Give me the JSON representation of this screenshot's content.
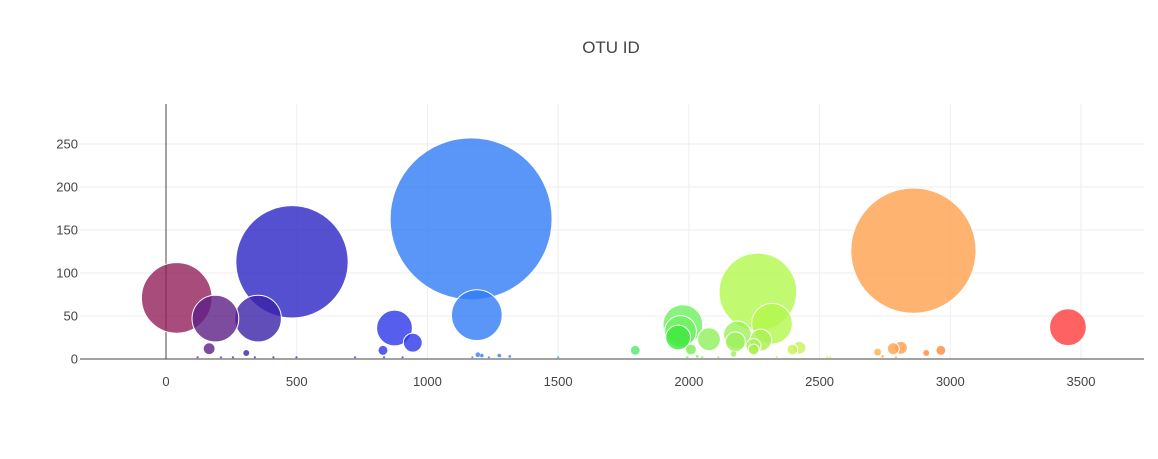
{
  "chart_data": {
    "type": "scatter",
    "subtype": "bubble",
    "title": "OTU ID",
    "xlabel": "",
    "ylabel": "",
    "xlim": [
      -300,
      3740
    ],
    "ylim": [
      -5,
      285
    ],
    "xticks": [
      0,
      500,
      1000,
      1500,
      2000,
      2500,
      3000,
      3500
    ],
    "yticks": [
      0,
      50,
      100,
      150,
      200,
      250
    ],
    "grid": true,
    "legend": "none",
    "size_max_value": 163,
    "points": [
      {
        "x": 1167,
        "y": 163,
        "color": "#2f7cf6"
      },
      {
        "x": 2859,
        "y": 126,
        "color": "#ffa04e"
      },
      {
        "x": 482,
        "y": 113,
        "color": "#2a24c4"
      },
      {
        "x": 2264,
        "y": 78,
        "color": "#b2f84e"
      },
      {
        "x": 41,
        "y": 71,
        "color": "#921f5b"
      },
      {
        "x": 1189,
        "y": 51,
        "color": "#2f7cf6"
      },
      {
        "x": 352,
        "y": 47,
        "color": "#3a22a8"
      },
      {
        "x": 189,
        "y": 47,
        "color": "#5e1f86"
      },
      {
        "x": 2318,
        "y": 41,
        "color": "#b2f84e"
      },
      {
        "x": 1977,
        "y": 40,
        "color": "#6df060"
      },
      {
        "x": 3450,
        "y": 37,
        "color": "#ff3b3b"
      },
      {
        "x": 874,
        "y": 36,
        "color": "#2b36e8"
      },
      {
        "x": 1968,
        "y": 32,
        "color": "#6df060"
      },
      {
        "x": 2186,
        "y": 28,
        "color": "#9df05a"
      },
      {
        "x": 1959,
        "y": 25,
        "color": "#3ee83e"
      },
      {
        "x": 2077,
        "y": 23,
        "color": "#8ff05a"
      },
      {
        "x": 2275,
        "y": 22,
        "color": "#a8f050"
      },
      {
        "x": 2178,
        "y": 20,
        "color": "#9df05a"
      },
      {
        "x": 944,
        "y": 19,
        "color": "#2b36e8"
      },
      {
        "x": 2247,
        "y": 15,
        "color": "#a8f050"
      },
      {
        "x": 2423,
        "y": 13,
        "color": "#c8f05a"
      },
      {
        "x": 2811,
        "y": 13,
        "color": "#ff9c4a"
      },
      {
        "x": 2782,
        "y": 12,
        "color": "#ffa04e"
      },
      {
        "x": 165,
        "y": 12,
        "color": "#5e1f86"
      },
      {
        "x": 2396,
        "y": 11,
        "color": "#c8f05a"
      },
      {
        "x": 2008,
        "y": 11,
        "color": "#78f04e"
      },
      {
        "x": 2248,
        "y": 11,
        "color": "#a8f050"
      },
      {
        "x": 2964,
        "y": 10,
        "color": "#ff8a3a"
      },
      {
        "x": 1795,
        "y": 10,
        "color": "#4ee86e"
      },
      {
        "x": 830,
        "y": 10,
        "color": "#2b36e8"
      },
      {
        "x": 2722,
        "y": 8,
        "color": "#ffb040"
      },
      {
        "x": 2908,
        "y": 7,
        "color": "#ff8a3a"
      },
      {
        "x": 307,
        "y": 7,
        "color": "#3a22a8"
      },
      {
        "x": 2171,
        "y": 6,
        "color": "#9df05a"
      },
      {
        "x": 1193,
        "y": 5,
        "color": "#2f7cf6"
      },
      {
        "x": 1208,
        "y": 4,
        "color": "#2f7cf6"
      },
      {
        "x": 1275,
        "y": 4,
        "color": "#2f7cf6"
      },
      {
        "x": 1315,
        "y": 3,
        "color": "#2f7cf6"
      },
      {
        "x": 2032,
        "y": 3,
        "color": "#78f04e"
      },
      {
        "x": 2741,
        "y": 3,
        "color": "#ffb040"
      },
      {
        "x": 905,
        "y": 2,
        "color": "#2b36e8"
      },
      {
        "x": 834,
        "y": 2,
        "color": "#2b36e8"
      },
      {
        "x": 1500,
        "y": 2,
        "color": "#2fa0f6"
      },
      {
        "x": 2336,
        "y": 2,
        "color": "#b2f84e"
      },
      {
        "x": 2529,
        "y": 2,
        "color": "#d8f060"
      },
      {
        "x": 2541,
        "y": 2,
        "color": "#d8f060"
      },
      {
        "x": 2792,
        "y": 2,
        "color": "#ffa04e"
      },
      {
        "x": 256,
        "y": 2,
        "color": "#3a22a8"
      },
      {
        "x": 340,
        "y": 2,
        "color": "#3a22a8"
      },
      {
        "x": 411,
        "y": 2,
        "color": "#3a22a8"
      },
      {
        "x": 121,
        "y": 2,
        "color": "#5e1f86"
      },
      {
        "x": 210,
        "y": 2,
        "color": "#5e1f86"
      },
      {
        "x": 499,
        "y": 2,
        "color": "#2a24c4"
      },
      {
        "x": 723,
        "y": 2,
        "color": "#2b36e8"
      },
      {
        "x": 1172,
        "y": 2,
        "color": "#2f7cf6"
      },
      {
        "x": 1235,
        "y": 2,
        "color": "#2f7cf6"
      },
      {
        "x": 1993,
        "y": 2,
        "color": "#6df060"
      },
      {
        "x": 2051,
        "y": 2,
        "color": "#78f04e"
      },
      {
        "x": 2113,
        "y": 2,
        "color": "#8ff05a"
      }
    ]
  },
  "colors": {
    "grid": "#eeeeee",
    "axis": "#444444",
    "bubble_outline": "#ffffff"
  }
}
